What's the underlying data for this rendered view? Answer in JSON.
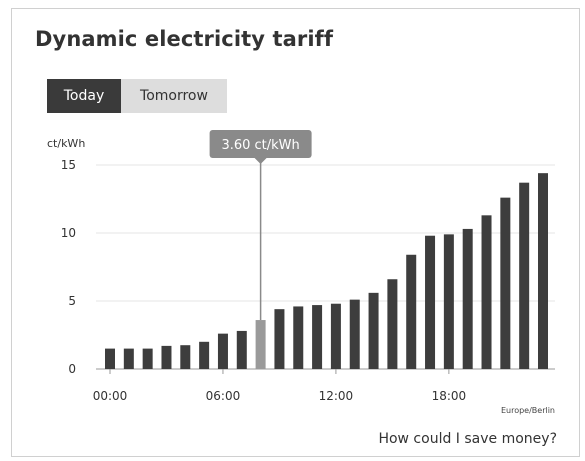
{
  "widget": {
    "title": "Dynamic electricity tariff",
    "tabs": [
      {
        "label": "Today",
        "active": true
      },
      {
        "label": "Tomorrow",
        "active": false
      }
    ],
    "footer_link": "How could I save money?",
    "timezone": "Europe/Berlin"
  },
  "chart_data": {
    "type": "bar",
    "title": "",
    "ylabel": "ct/kWh",
    "xlabel": "",
    "ylim": [
      0,
      15
    ],
    "yticks": [
      0,
      5,
      10,
      15
    ],
    "xtick_labels": [
      "00:00",
      "06:00",
      "12:00",
      "18:00"
    ],
    "xtick_hours": [
      0,
      6,
      12,
      18
    ],
    "categories": [
      "00:00",
      "01:00",
      "02:00",
      "03:00",
      "04:00",
      "05:00",
      "06:00",
      "07:00",
      "08:00",
      "09:00",
      "10:00",
      "11:00",
      "12:00",
      "13:00",
      "14:00",
      "15:00",
      "16:00",
      "17:00",
      "18:00",
      "19:00",
      "20:00",
      "21:00",
      "22:00",
      "23:00"
    ],
    "values": [
      1.5,
      1.5,
      1.5,
      1.7,
      1.75,
      2.0,
      2.6,
      2.8,
      3.6,
      4.4,
      4.6,
      4.7,
      4.8,
      5.1,
      5.6,
      6.6,
      8.4,
      9.8,
      9.9,
      10.3,
      11.3,
      12.6,
      13.7,
      14.4
    ],
    "highlight_index": 8,
    "tooltip": "3.60 ct/kWh",
    "colors": {
      "bar": "#3d3d3d",
      "highlight": "#9a9a9a",
      "tooltip_bg": "#8a8a8a",
      "tooltip_text": "#ffffff",
      "grid": "#e4e4e4"
    }
  }
}
